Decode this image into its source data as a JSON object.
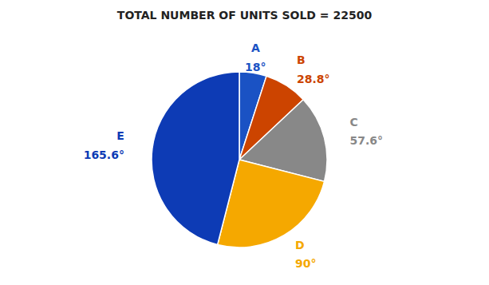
{
  "chart_data": {
    "type": "pie",
    "title": "TOTAL NUMBER OF UNITS SOLD = 22500",
    "categories": [
      "A",
      "B",
      "C",
      "D",
      "E"
    ],
    "values": [
      18.0,
      28.8,
      57.6,
      90.0,
      165.6
    ],
    "value_labels": [
      "18°",
      "28.8°",
      "57.6°",
      "90°",
      "165.6°"
    ],
    "colors": [
      "#1A52C4",
      "#CC4400",
      "#888888",
      "#F5A800",
      "#0D3BB5"
    ],
    "data_labels": true
  }
}
